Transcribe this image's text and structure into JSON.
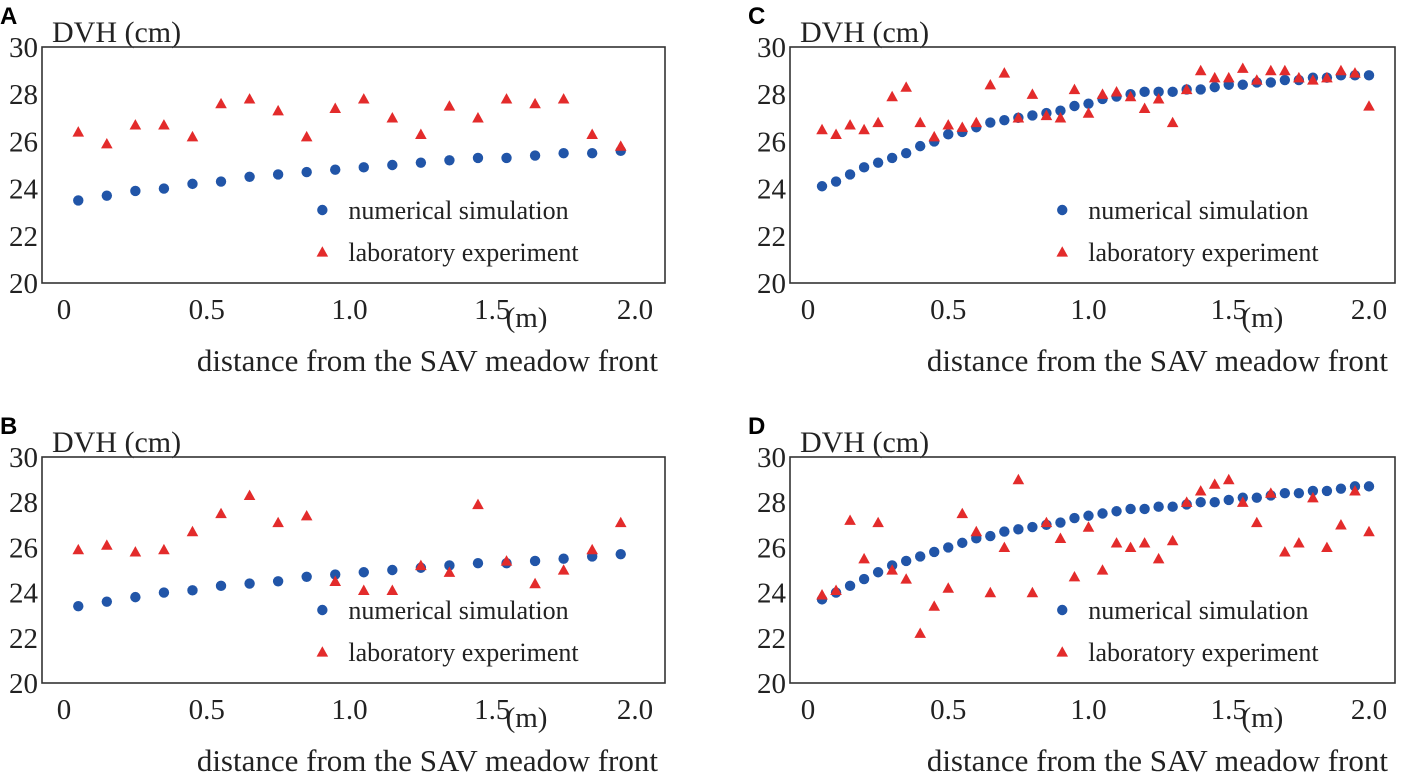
{
  "colors": {
    "simulation": "#2155a8",
    "experiment": "#e32b2b"
  },
  "chart_data": [
    {
      "panel": "A",
      "type": "scatter",
      "ylabel": "DVH (cm)",
      "xlabel": "distance from the SAV meadow front",
      "x_unit": "(m)",
      "xlim": [
        0,
        2.0
      ],
      "ylim": [
        20,
        30
      ],
      "x_ticks": [
        "0",
        "0.5",
        "1.0",
        "1.5",
        "2.0"
      ],
      "y_ticks": [
        "20",
        "22",
        "24",
        "26",
        "28",
        "30"
      ],
      "legend": [
        "numerical simulation",
        "laboratory experiment"
      ],
      "series": [
        {
          "name": "numerical simulation",
          "marker": "circle",
          "x": [
            0.05,
            0.15,
            0.25,
            0.35,
            0.45,
            0.55,
            0.65,
            0.75,
            0.85,
            0.95,
            1.05,
            1.15,
            1.25,
            1.35,
            1.45,
            1.55,
            1.65,
            1.75,
            1.85,
            1.95
          ],
          "y": [
            23.5,
            23.7,
            23.9,
            24.0,
            24.2,
            24.3,
            24.5,
            24.6,
            24.7,
            24.8,
            24.9,
            25.0,
            25.1,
            25.2,
            25.3,
            25.3,
            25.4,
            25.5,
            25.5,
            25.6
          ]
        },
        {
          "name": "laboratory experiment",
          "marker": "triangle",
          "x": [
            0.05,
            0.15,
            0.25,
            0.35,
            0.45,
            0.55,
            0.65,
            0.75,
            0.85,
            0.95,
            1.05,
            1.15,
            1.25,
            1.35,
            1.45,
            1.55,
            1.65,
            1.75,
            1.85,
            1.95
          ],
          "y": [
            26.4,
            25.9,
            26.7,
            26.7,
            26.2,
            27.6,
            27.8,
            27.3,
            26.2,
            27.4,
            27.8,
            27.0,
            26.3,
            27.5,
            27.0,
            27.8,
            27.6,
            27.8,
            26.3,
            25.8
          ]
        }
      ]
    },
    {
      "panel": "B",
      "type": "scatter",
      "ylabel": "DVH (cm)",
      "xlabel": "distance from the SAV meadow front",
      "x_unit": "(m)",
      "xlim": [
        0,
        2.0
      ],
      "ylim": [
        20,
        30
      ],
      "x_ticks": [
        "0",
        "0.5",
        "1.0",
        "1.5",
        "2.0"
      ],
      "y_ticks": [
        "20",
        "22",
        "24",
        "26",
        "28",
        "30"
      ],
      "legend": [
        "numerical simulation",
        "laboratory experiment"
      ],
      "series": [
        {
          "name": "numerical simulation",
          "marker": "circle",
          "x": [
            0.05,
            0.15,
            0.25,
            0.35,
            0.45,
            0.55,
            0.65,
            0.75,
            0.85,
            0.95,
            1.05,
            1.15,
            1.25,
            1.35,
            1.45,
            1.55,
            1.65,
            1.75,
            1.85,
            1.95
          ],
          "y": [
            23.4,
            23.6,
            23.8,
            24.0,
            24.1,
            24.3,
            24.4,
            24.5,
            24.7,
            24.8,
            24.9,
            25.0,
            25.1,
            25.2,
            25.3,
            25.3,
            25.4,
            25.5,
            25.6,
            25.7
          ]
        },
        {
          "name": "laboratory experiment",
          "marker": "triangle",
          "x": [
            0.05,
            0.15,
            0.25,
            0.35,
            0.45,
            0.55,
            0.65,
            0.75,
            0.85,
            0.95,
            1.05,
            1.15,
            1.25,
            1.35,
            1.45,
            1.55,
            1.65,
            1.75,
            1.85,
            1.95
          ],
          "y": [
            25.9,
            26.1,
            25.8,
            25.9,
            26.7,
            27.5,
            28.3,
            27.1,
            27.4,
            24.5,
            24.1,
            24.1,
            25.2,
            24.9,
            27.9,
            25.4,
            24.4,
            25.0,
            25.9,
            27.1
          ]
        }
      ]
    },
    {
      "panel": "C",
      "type": "scatter",
      "ylabel": "DVH (cm)",
      "xlabel": "distance from the SAV meadow front",
      "x_unit": "(m)",
      "xlim": [
        0,
        2.0
      ],
      "ylim": [
        20,
        30
      ],
      "x_ticks": [
        "0",
        "0.5",
        "1.0",
        "1.5",
        "2.0"
      ],
      "y_ticks": [
        "20",
        "22",
        "24",
        "26",
        "28",
        "30"
      ],
      "legend": [
        "numerical simulation",
        "laboratory experiment"
      ],
      "series": [
        {
          "name": "numerical simulation",
          "marker": "circle",
          "x": [
            0.05,
            0.1,
            0.15,
            0.2,
            0.25,
            0.3,
            0.35,
            0.4,
            0.45,
            0.5,
            0.55,
            0.6,
            0.65,
            0.7,
            0.75,
            0.8,
            0.85,
            0.9,
            0.95,
            1.0,
            1.05,
            1.1,
            1.15,
            1.2,
            1.25,
            1.3,
            1.35,
            1.4,
            1.45,
            1.5,
            1.55,
            1.6,
            1.65,
            1.7,
            1.75,
            1.8,
            1.85,
            1.9,
            1.95,
            2.0
          ],
          "y": [
            24.1,
            24.3,
            24.6,
            24.9,
            25.1,
            25.3,
            25.5,
            25.8,
            26.0,
            26.3,
            26.4,
            26.6,
            26.8,
            26.9,
            27.0,
            27.1,
            27.2,
            27.3,
            27.5,
            27.6,
            27.8,
            27.9,
            28.0,
            28.1,
            28.1,
            28.1,
            28.2,
            28.2,
            28.3,
            28.4,
            28.4,
            28.5,
            28.5,
            28.6,
            28.6,
            28.7,
            28.7,
            28.8,
            28.8,
            28.8
          ]
        },
        {
          "name": "laboratory experiment",
          "marker": "triangle",
          "x": [
            0.05,
            0.1,
            0.15,
            0.2,
            0.25,
            0.3,
            0.35,
            0.4,
            0.45,
            0.5,
            0.55,
            0.6,
            0.65,
            0.7,
            0.75,
            0.8,
            0.85,
            0.9,
            0.95,
            1.0,
            1.05,
            1.1,
            1.15,
            1.2,
            1.25,
            1.3,
            1.35,
            1.4,
            1.45,
            1.5,
            1.55,
            1.6,
            1.65,
            1.7,
            1.75,
            1.8,
            1.85,
            1.9,
            1.95,
            2.0
          ],
          "y": [
            26.5,
            26.3,
            26.7,
            26.5,
            26.8,
            27.9,
            28.3,
            26.8,
            26.2,
            26.7,
            26.6,
            26.8,
            28.4,
            28.9,
            27.0,
            28.0,
            27.1,
            27.0,
            28.2,
            27.2,
            28.0,
            28.1,
            27.9,
            27.4,
            27.8,
            26.8,
            28.2,
            29.0,
            28.7,
            28.7,
            29.1,
            28.6,
            29.0,
            29.0,
            28.7,
            28.6,
            28.7,
            29.0,
            28.9,
            27.5
          ]
        }
      ]
    },
    {
      "panel": "D",
      "type": "scatter",
      "ylabel": "DVH (cm)",
      "xlabel": "distance from the SAV meadow front",
      "x_unit": "(m)",
      "xlim": [
        0,
        2.0
      ],
      "ylim": [
        20,
        30
      ],
      "x_ticks": [
        "0",
        "0.5",
        "1.0",
        "1.5",
        "2.0"
      ],
      "y_ticks": [
        "20",
        "22",
        "24",
        "26",
        "28",
        "30"
      ],
      "legend": [
        "numerical simulation",
        "laboratory experiment"
      ],
      "series": [
        {
          "name": "numerical simulation",
          "marker": "circle",
          "x": [
            0.05,
            0.1,
            0.15,
            0.2,
            0.25,
            0.3,
            0.35,
            0.4,
            0.45,
            0.5,
            0.55,
            0.6,
            0.65,
            0.7,
            0.75,
            0.8,
            0.85,
            0.9,
            0.95,
            1.0,
            1.05,
            1.1,
            1.15,
            1.2,
            1.25,
            1.3,
            1.35,
            1.4,
            1.45,
            1.5,
            1.55,
            1.6,
            1.65,
            1.7,
            1.75,
            1.8,
            1.85,
            1.9,
            1.95,
            2.0
          ],
          "y": [
            23.7,
            24.0,
            24.3,
            24.6,
            24.9,
            25.2,
            25.4,
            25.6,
            25.8,
            26.0,
            26.2,
            26.4,
            26.5,
            26.7,
            26.8,
            26.9,
            27.0,
            27.1,
            27.3,
            27.4,
            27.5,
            27.6,
            27.7,
            27.7,
            27.8,
            27.8,
            27.9,
            28.0,
            28.0,
            28.1,
            28.2,
            28.2,
            28.3,
            28.4,
            28.4,
            28.5,
            28.5,
            28.6,
            28.7,
            28.7
          ]
        },
        {
          "name": "laboratory experiment",
          "marker": "triangle",
          "x": [
            0.05,
            0.1,
            0.15,
            0.2,
            0.25,
            0.3,
            0.35,
            0.4,
            0.45,
            0.5,
            0.55,
            0.6,
            0.65,
            0.7,
            0.75,
            0.8,
            0.85,
            0.9,
            0.95,
            1.0,
            1.05,
            1.1,
            1.15,
            1.2,
            1.25,
            1.3,
            1.35,
            1.4,
            1.45,
            1.5,
            1.55,
            1.6,
            1.65,
            1.7,
            1.75,
            1.8,
            1.85,
            1.9,
            1.95,
            2.0
          ],
          "y": [
            23.9,
            24.1,
            27.2,
            25.5,
            27.1,
            25.0,
            24.6,
            22.2,
            23.4,
            24.2,
            27.5,
            26.7,
            24.0,
            26.0,
            29.0,
            24.0,
            27.1,
            26.4,
            24.7,
            26.9,
            25.0,
            26.2,
            26.0,
            26.2,
            25.5,
            26.3,
            28.0,
            28.5,
            28.8,
            29.0,
            28.0,
            27.1,
            28.4,
            25.8,
            26.2,
            28.2,
            26.0,
            27.0,
            28.5,
            26.7
          ]
        }
      ]
    }
  ]
}
